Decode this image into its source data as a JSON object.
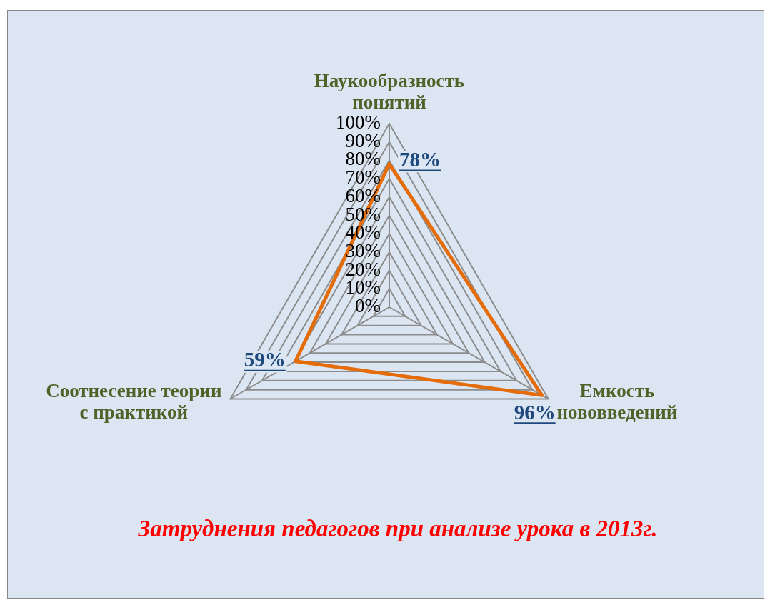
{
  "chart_data": {
    "type": "radar",
    "title": "Затруднения педагогов при анализе урока в 2013г.",
    "categories": [
      "Наукообразность понятий",
      "Емкость нововведений",
      "Соотнесение теории с практикой"
    ],
    "series": [
      {
        "color": "#e46c0a",
        "values": [
          78,
          96,
          59
        ],
        "value_labels": [
          "78%",
          "96%",
          "59%"
        ]
      }
    ],
    "ylim": [
      0,
      100
    ],
    "yticks": [
      {
        "value": 0,
        "label": "0%"
      },
      {
        "value": 10,
        "label": "10%"
      },
      {
        "value": 20,
        "label": "20%"
      },
      {
        "value": 30,
        "label": "30%"
      },
      {
        "value": 40,
        "label": "40%"
      },
      {
        "value": 50,
        "label": "50%"
      },
      {
        "value": 60,
        "label": "60%"
      },
      {
        "value": 70,
        "label": "70%"
      },
      {
        "value": 80,
        "label": "80%"
      },
      {
        "value": 90,
        "label": "90%"
      },
      {
        "value": 100,
        "label": "100%"
      }
    ],
    "grid": true,
    "marker": "none"
  }
}
